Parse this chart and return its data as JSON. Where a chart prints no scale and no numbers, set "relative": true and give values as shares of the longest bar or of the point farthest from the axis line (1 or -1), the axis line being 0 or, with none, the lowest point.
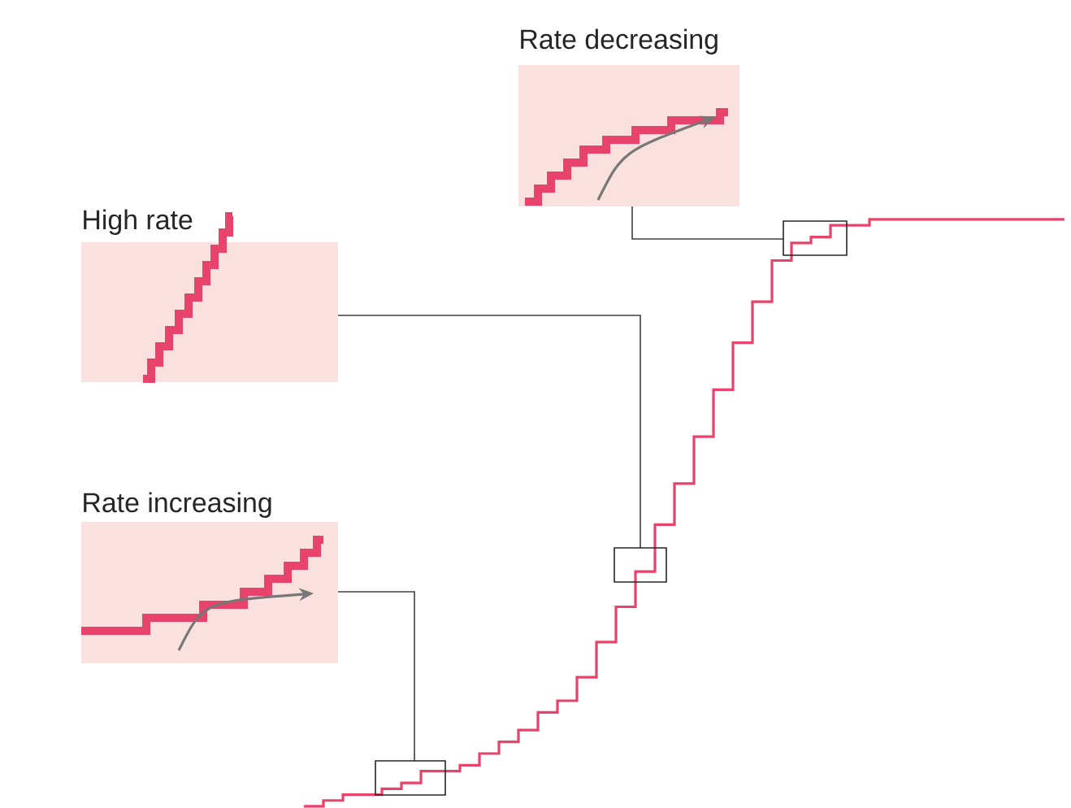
{
  "chart_data": {
    "type": "step",
    "relative": true,
    "color": "#e8436a",
    "categories": [
      null,
      null,
      null,
      null,
      null,
      null,
      null,
      null,
      null,
      null,
      null,
      null,
      null,
      null,
      null,
      null,
      null,
      null,
      null,
      null,
      null,
      null,
      null,
      null,
      null,
      null,
      null,
      null,
      null,
      null,
      null,
      null,
      null,
      null,
      null,
      null,
      null,
      null,
      null,
      null
    ],
    "values": [
      0,
      0.01,
      0.02,
      0.02,
      0.03,
      0.04,
      0.06,
      0.06,
      0.07,
      0.09,
      0.11,
      0.13,
      0.16,
      0.18,
      0.22,
      0.28,
      0.34,
      0.4,
      0.48,
      0.55,
      0.63,
      0.71,
      0.79,
      0.86,
      0.93,
      0.96,
      0.97,
      0.99,
      0.99,
      1,
      1,
      1,
      1,
      1,
      1,
      1,
      1,
      1,
      1,
      1
    ],
    "annotations": [
      "Rate decreasing",
      "High rate",
      "Rate increasing"
    ]
  }
}
